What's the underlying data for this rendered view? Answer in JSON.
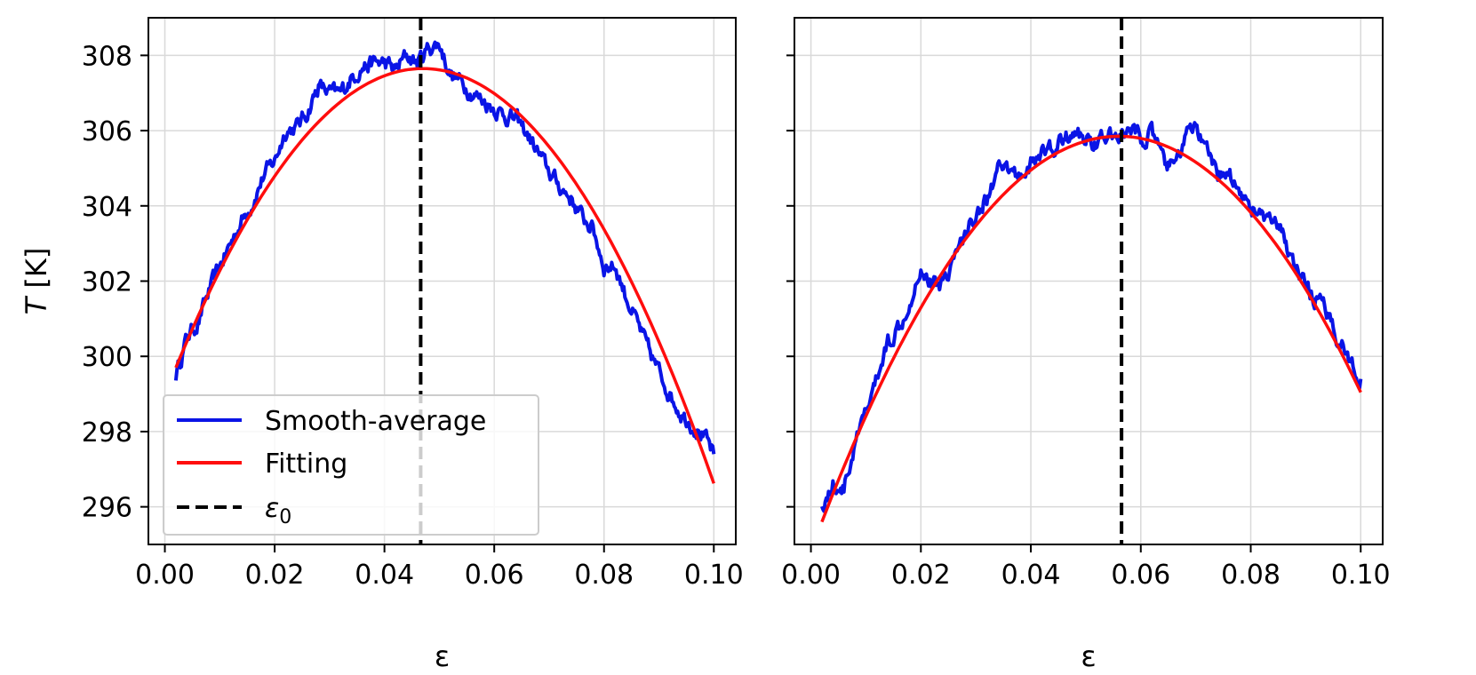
{
  "colors": {
    "smooth": "#0a14e6",
    "fit": "#ff0d0d",
    "eps0": "#000000",
    "grid": "#d9d9d9"
  },
  "chart_data": [
    {
      "type": "line",
      "xlabel": "ε",
      "ylabel_italic": "T",
      "ylabel_unit": " [K]",
      "xlim": [
        -0.003,
        0.104
      ],
      "ylim": [
        295.0,
        309.0
      ],
      "xticks": [
        0.0,
        0.02,
        0.04,
        0.06,
        0.08,
        0.1
      ],
      "xtick_labels": [
        "0.00",
        "0.02",
        "0.04",
        "0.06",
        "0.08",
        "0.10"
      ],
      "yticks": [
        296,
        298,
        300,
        302,
        304,
        306,
        308
      ],
      "ytick_labels": [
        "296",
        "298",
        "300",
        "302",
        "304",
        "306",
        "308"
      ],
      "grid": true,
      "eps0": 0.0466,
      "legend": {
        "position": "lower-left",
        "entries": [
          {
            "label": "Smooth-average",
            "style": "solid",
            "color_key": "smooth"
          },
          {
            "label": "Fitting",
            "style": "solid",
            "color_key": "fit"
          },
          {
            "label": "ε",
            "sub": "0",
            "style": "dashed",
            "color_key": "eps0"
          }
        ]
      },
      "series": [
        {
          "name": "Smooth-average",
          "x": [
            0.002,
            0.004,
            0.006,
            0.008,
            0.01,
            0.012,
            0.014,
            0.016,
            0.018,
            0.02,
            0.022,
            0.024,
            0.026,
            0.028,
            0.03,
            0.032,
            0.034,
            0.036,
            0.038,
            0.04,
            0.042,
            0.044,
            0.046,
            0.048,
            0.05,
            0.052,
            0.054,
            0.056,
            0.058,
            0.06,
            0.062,
            0.064,
            0.066,
            0.068,
            0.07,
            0.072,
            0.074,
            0.076,
            0.078,
            0.08,
            0.082,
            0.084,
            0.086,
            0.088,
            0.09,
            0.092,
            0.094,
            0.096,
            0.098,
            0.1
          ],
          "y": [
            299.5,
            300.5,
            300.9,
            301.7,
            302.4,
            303.0,
            303.6,
            304.1,
            304.8,
            305.2,
            306.0,
            306.1,
            306.5,
            307.2,
            307.0,
            307.0,
            307.4,
            307.7,
            307.8,
            307.8,
            307.6,
            308.0,
            307.8,
            308.2,
            308.3,
            307.5,
            307.3,
            307.0,
            306.8,
            306.6,
            306.4,
            306.3,
            305.9,
            305.4,
            304.9,
            304.5,
            304.2,
            303.7,
            303.4,
            302.4,
            302.4,
            301.6,
            300.9,
            300.2,
            299.6,
            299.0,
            298.5,
            298.2,
            297.9,
            297.4
          ]
        },
        {
          "name": "Fitting",
          "fit": {
            "type": "quadratic",
            "vertex_x": 0.047,
            "vertex_y": 307.65,
            "x_start": 0.002,
            "y_start": 299.7,
            "x_end": 0.1
          }
        }
      ]
    },
    {
      "type": "line",
      "xlabel": "ε",
      "xlim": [
        -0.003,
        0.104
      ],
      "ylim": [
        295.0,
        309.0
      ],
      "xticks": [
        0.0,
        0.02,
        0.04,
        0.06,
        0.08,
        0.1
      ],
      "xtick_labels": [
        "0.00",
        "0.02",
        "0.04",
        "0.06",
        "0.08",
        "0.10"
      ],
      "yticks": [
        296,
        298,
        300,
        302,
        304,
        306,
        308
      ],
      "grid": true,
      "eps0": 0.0565,
      "series": [
        {
          "name": "Smooth-average",
          "x": [
            0.002,
            0.004,
            0.006,
            0.008,
            0.01,
            0.012,
            0.014,
            0.016,
            0.018,
            0.02,
            0.022,
            0.024,
            0.026,
            0.028,
            0.03,
            0.032,
            0.034,
            0.036,
            0.038,
            0.04,
            0.042,
            0.044,
            0.046,
            0.048,
            0.05,
            0.052,
            0.054,
            0.056,
            0.058,
            0.06,
            0.062,
            0.064,
            0.066,
            0.068,
            0.07,
            0.072,
            0.074,
            0.076,
            0.078,
            0.08,
            0.082,
            0.084,
            0.086,
            0.088,
            0.09,
            0.092,
            0.094,
            0.096,
            0.098,
            0.1
          ],
          "y": [
            296.0,
            296.6,
            296.5,
            297.6,
            298.5,
            299.4,
            300.4,
            300.8,
            301.5,
            302.4,
            301.9,
            302.0,
            302.6,
            303.2,
            303.8,
            304.2,
            304.9,
            304.9,
            304.8,
            305.1,
            305.4,
            305.5,
            305.8,
            305.9,
            305.8,
            305.7,
            305.8,
            305.9,
            306.0,
            305.8,
            305.9,
            305.2,
            305.0,
            305.8,
            306.1,
            305.4,
            304.8,
            304.9,
            304.4,
            304.0,
            303.7,
            303.5,
            303.2,
            302.4,
            301.8,
            301.5,
            301.1,
            300.5,
            299.9,
            299.4
          ]
        },
        {
          "name": "Fitting",
          "fit": {
            "type": "quadratic",
            "vertex_x": 0.056,
            "vertex_y": 305.85,
            "x_start": 0.002,
            "y_start": 295.6,
            "x_end": 0.1
          }
        }
      ]
    }
  ]
}
